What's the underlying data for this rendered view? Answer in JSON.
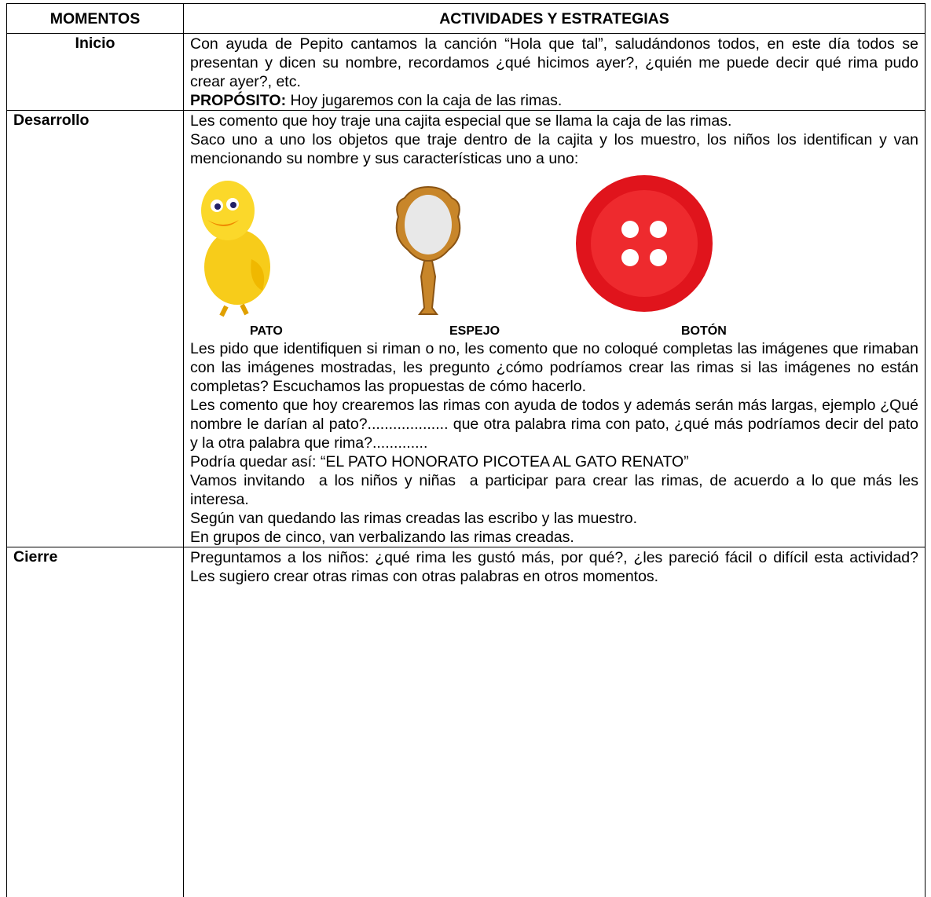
{
  "table": {
    "headers": [
      "MOMENTOS",
      "ACTIVIDADES Y ESTRATEGIAS"
    ],
    "rows": [
      {
        "moment": "Inicio",
        "paragraphs": [
          "Con ayuda de Pepito cantamos la canción “Hola que tal”, saludándonos todos, en este día todos se presentan y dicen su nombre, recordamos ¿qué hicimos ayer?, ¿quién me puede decir qué rima pudo crear ayer?, etc."
        ],
        "purpose": {
          "label": "PROPÓSITO:",
          "text": "Hoy jugaremos con la caja de las rimas."
        }
      },
      {
        "moment": "Desarrollo",
        "intro": [
          "Les comento que hoy traje una cajita especial que se llama la caja de las rimas.",
          "Saco uno a uno los objetos que traje dentro de la cajita y los muestro, los niños los identifican y van mencionando su nombre y sus características uno a uno:"
        ],
        "images": [
          "PATO",
          "ESPEJO",
          "BOTÓN"
        ],
        "paragraphs": [
          "Les pido que identifiquen si riman o no, les comento que no coloqué completas las imágenes que rimaban con las imágenes mostradas, les pregunto ¿cómo podríamos crear las rimas si las imágenes no están completas? Escuchamos las propuestas de cómo hacerlo.",
          "Les comento que hoy crearemos las rimas con ayuda de todos y además serán más largas, ejemplo ¿Qué nombre le darían al pato?................... que otra palabra rima con pato, ¿qué más podríamos decir del pato y la otra palabra que rima?.............",
          "Podría quedar así: “EL PATO HONORATO PICOTEA AL GATO RENATO”",
          "Vamos invitando  a los niños y niñas  a participar para crear las rimas, de acuerdo a lo que más les interesa.",
          "Según van quedando las rimas creadas las escribo y las muestro.",
          "En grupos de cinco, van verbalizando las rimas creadas."
        ]
      },
      {
        "moment": "Cierre",
        "paragraphs": [
          "Preguntamos a los niños: ¿qué rima les gustó más, por qué?, ¿les pareció fácil o difícil esta actividad?  Les sugiero crear otras rimas con otras palabras en otros momentos."
        ]
      }
    ]
  }
}
